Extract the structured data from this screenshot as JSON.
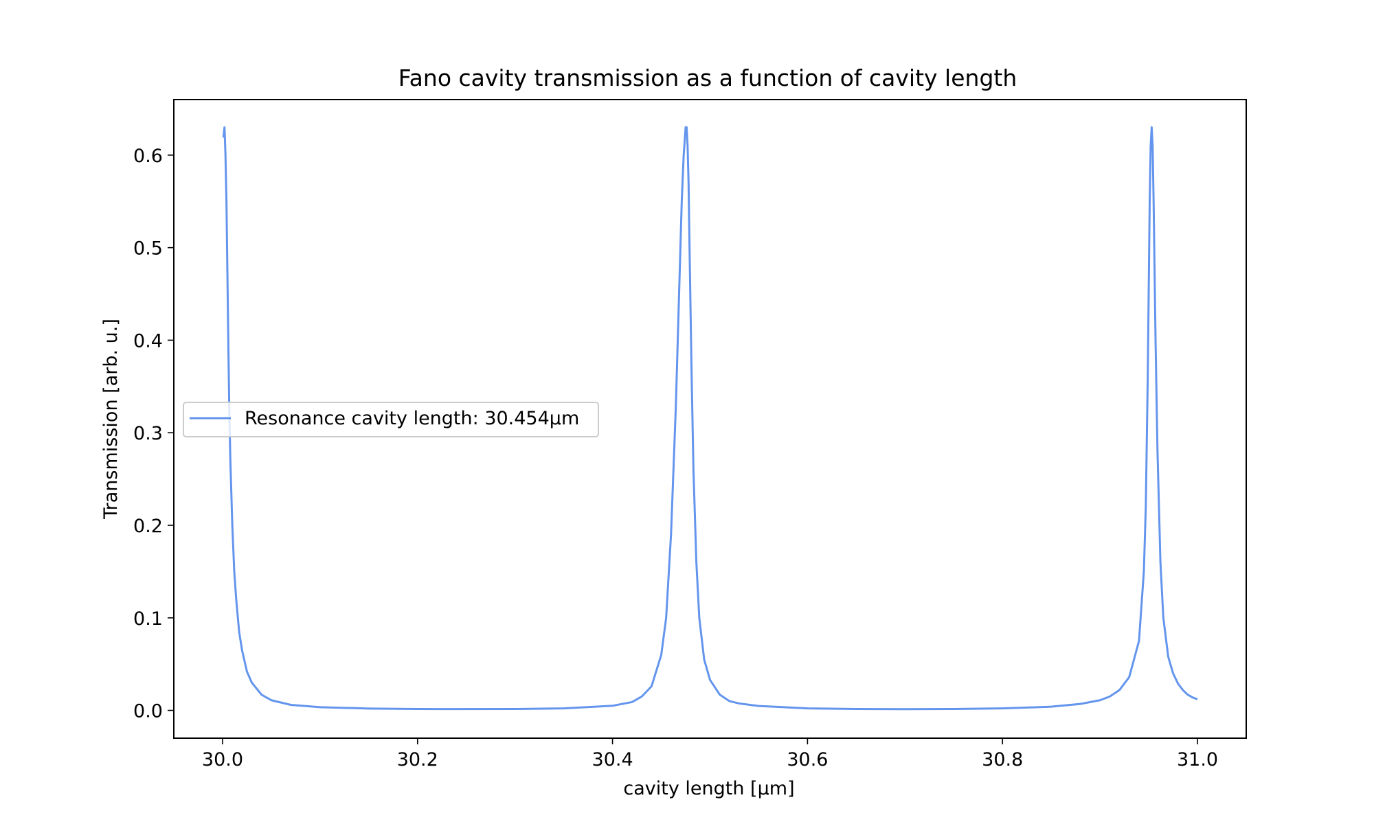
{
  "chart_data": {
    "type": "line",
    "title": "Fano cavity transmission as a function of cavity length",
    "xlabel": "cavity length [µm]",
    "ylabel": "Transmission [arb. u.]",
    "xlim": [
      29.95,
      31.05
    ],
    "ylim": [
      -0.03,
      0.66
    ],
    "x_ticks": [
      30.0,
      30.2,
      30.4,
      30.6,
      30.8,
      31.0
    ],
    "x_tick_labels": [
      "30.0",
      "30.2",
      "30.4",
      "30.6",
      "30.8",
      "31.0"
    ],
    "y_ticks": [
      0.0,
      0.1,
      0.2,
      0.3,
      0.4,
      0.5,
      0.6
    ],
    "y_tick_labels": [
      "0.0",
      "0.1",
      "0.2",
      "0.3",
      "0.4",
      "0.5",
      "0.6"
    ],
    "grid": false,
    "legend_position": "center-left",
    "series": [
      {
        "name": "Resonance cavity length: 30.454µm",
        "color": "#6495ED",
        "x": [
          30.0,
          30.001,
          30.002,
          30.003,
          30.004,
          30.005,
          30.006,
          30.007,
          30.008,
          30.01,
          30.012,
          30.014,
          30.017,
          30.02,
          30.025,
          30.03,
          30.04,
          30.05,
          30.07,
          30.1,
          30.15,
          30.2,
          30.24,
          30.3,
          30.35,
          30.4,
          30.42,
          30.43,
          30.44,
          30.45,
          30.455,
          30.46,
          30.465,
          30.468,
          30.471,
          30.473,
          30.475,
          30.476,
          30.477,
          30.478,
          30.479,
          30.481,
          30.483,
          30.486,
          30.489,
          30.494,
          30.5,
          30.51,
          30.52,
          30.53,
          30.55,
          30.6,
          30.65,
          30.7,
          30.75,
          30.8,
          30.85,
          30.88,
          30.9,
          30.91,
          30.92,
          30.93,
          30.94,
          30.945,
          30.947,
          30.949,
          30.951,
          30.952,
          30.953,
          30.954,
          30.955,
          30.957,
          30.959,
          30.962,
          30.965,
          30.97,
          30.975,
          30.98,
          30.985,
          30.99,
          30.995,
          31.0
        ],
        "y": [
          0.62,
          0.62,
          0.63,
          0.6,
          0.55,
          0.47,
          0.39,
          0.32,
          0.27,
          0.2,
          0.15,
          0.12,
          0.085,
          0.065,
          0.042,
          0.03,
          0.017,
          0.011,
          0.006,
          0.0035,
          0.002,
          0.0015,
          0.0014,
          0.0015,
          0.0022,
          0.005,
          0.009,
          0.015,
          0.026,
          0.06,
          0.1,
          0.19,
          0.33,
          0.44,
          0.55,
          0.6,
          0.63,
          0.63,
          0.61,
          0.57,
          0.5,
          0.37,
          0.26,
          0.16,
          0.1,
          0.055,
          0.033,
          0.017,
          0.01,
          0.0075,
          0.0048,
          0.0022,
          0.0015,
          0.0013,
          0.0015,
          0.0022,
          0.004,
          0.007,
          0.011,
          0.015,
          0.022,
          0.036,
          0.075,
          0.15,
          0.22,
          0.36,
          0.55,
          0.61,
          0.63,
          0.61,
          0.55,
          0.4,
          0.28,
          0.16,
          0.1,
          0.058,
          0.04,
          0.029,
          0.022,
          0.017,
          0.014,
          0.012
        ]
      }
    ]
  }
}
